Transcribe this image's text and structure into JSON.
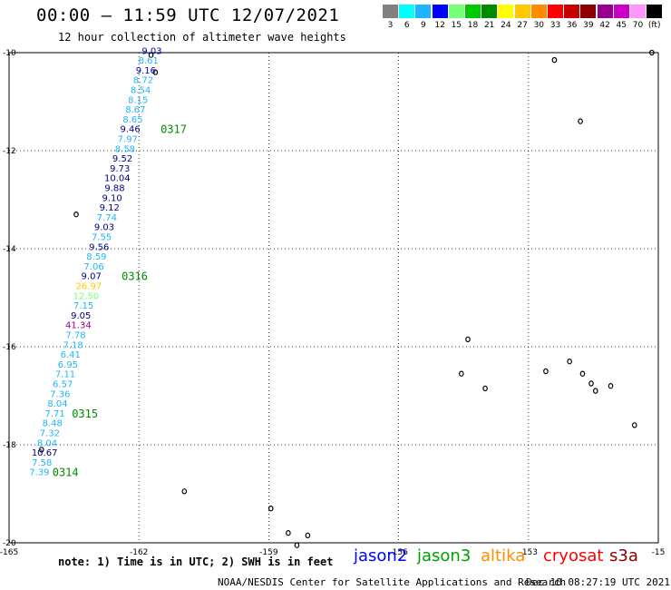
{
  "header": {
    "title": "00:00 — 11:59 UTC 12/07/2021",
    "subtitle": "12 hour collection of altimeter wave heights"
  },
  "color_scale": {
    "labels": [
      "3",
      "6",
      "9",
      "12",
      "15",
      "18",
      "21",
      "24",
      "27",
      "30",
      "33",
      "36",
      "39",
      "42",
      "45",
      "70",
      "(ft)"
    ],
    "colors": [
      "#808080",
      "#00ffff",
      "#1eb4ff",
      "#0000ff",
      "#78ff78",
      "#00c800",
      "#008c00",
      "#ffff00",
      "#ffc800",
      "#ff8c00",
      "#ff0000",
      "#c80000",
      "#8c0000",
      "#96008c",
      "#c800c8",
      "#ff96ff",
      "#000000"
    ]
  },
  "map": {
    "lon_range": [
      -165,
      -150
    ],
    "lat_range": [
      -20,
      -10
    ],
    "lon_labels": [
      {
        "lon": -165,
        "text": "-165"
      },
      {
        "lon": -162,
        "text": "-162"
      },
      {
        "lon": -159,
        "text": "-159"
      },
      {
        "lon": -156,
        "text": "-156"
      },
      {
        "lon": -153,
        "text": "-153"
      },
      {
        "lon": -150,
        "text": "-15"
      }
    ],
    "lat_labels": [
      {
        "lat": -10,
        "text": "-10"
      },
      {
        "lat": -12,
        "text": "-12"
      },
      {
        "lat": -14,
        "text": "-14"
      },
      {
        "lat": -16,
        "text": "-16"
      },
      {
        "lat": -18,
        "text": "-18"
      },
      {
        "lat": -20,
        "text": "-20"
      }
    ]
  },
  "track": {
    "satellite": "jason2",
    "observations": [
      {
        "lon": -161.7,
        "lat": -9.95,
        "value": "9.03",
        "color": "#0000c8"
      },
      {
        "lon": -161.78,
        "lat": -10.15,
        "value": "8.61",
        "color": "#1eb4ff"
      },
      {
        "lon": -161.84,
        "lat": -10.35,
        "value": "9.16",
        "color": "#0000c8"
      },
      {
        "lon": -161.9,
        "lat": -10.55,
        "value": "8.72",
        "color": "#1eb4ff"
      },
      {
        "lon": -161.96,
        "lat": -10.75,
        "value": "8.54",
        "color": "#1eb4ff"
      },
      {
        "lon": -162.02,
        "lat": -10.95,
        "value": "8.15",
        "color": "#1eb4ff"
      },
      {
        "lon": -162.08,
        "lat": -11.15,
        "value": "8.67",
        "color": "#1eb4ff"
      },
      {
        "lon": -162.14,
        "lat": -11.35,
        "value": "8.65",
        "color": "#1eb4ff"
      },
      {
        "lon": -162.2,
        "lat": -11.55,
        "value": "9.46",
        "color": "#000080"
      },
      {
        "lon": -162.26,
        "lat": -11.75,
        "value": "7.97",
        "color": "#1eb4ff"
      },
      {
        "lon": -162.32,
        "lat": -11.95,
        "value": "8.58",
        "color": "#1eb4ff"
      },
      {
        "lon": -162.38,
        "lat": -12.15,
        "value": "9.52",
        "color": "#000080"
      },
      {
        "lon": -162.44,
        "lat": -12.35,
        "value": "9.73",
        "color": "#000080"
      },
      {
        "lon": -162.5,
        "lat": -12.55,
        "value": "10.04",
        "color": "#000080"
      },
      {
        "lon": -162.56,
        "lat": -12.75,
        "value": "9.88",
        "color": "#000080"
      },
      {
        "lon": -162.62,
        "lat": -12.95,
        "value": "9.10",
        "color": "#000080"
      },
      {
        "lon": -162.68,
        "lat": -13.15,
        "value": "9.12",
        "color": "#000080"
      },
      {
        "lon": -162.74,
        "lat": -13.35,
        "value": "7.74",
        "color": "#1eb4ff"
      },
      {
        "lon": -162.8,
        "lat": -13.55,
        "value": "9.03",
        "color": "#000080"
      },
      {
        "lon": -162.86,
        "lat": -13.75,
        "value": "7.55",
        "color": "#1eb4ff"
      },
      {
        "lon": -162.92,
        "lat": -13.95,
        "value": "9.56",
        "color": "#000080"
      },
      {
        "lon": -162.98,
        "lat": -14.15,
        "value": "8.59",
        "color": "#1eb4ff"
      },
      {
        "lon": -163.04,
        "lat": -14.35,
        "value": "7.06",
        "color": "#1eb4ff"
      },
      {
        "lon": -163.1,
        "lat": -14.55,
        "value": "9.07",
        "color": "#000080"
      },
      {
        "lon": -163.16,
        "lat": -14.75,
        "value": "26.97",
        "color": "#ffc800"
      },
      {
        "lon": -163.22,
        "lat": -14.95,
        "value": "12.50",
        "color": "#78ff78"
      },
      {
        "lon": -163.28,
        "lat": -15.15,
        "value": "7.15",
        "color": "#1eb4ff"
      },
      {
        "lon": -163.34,
        "lat": -15.35,
        "value": "9.05",
        "color": "#000080"
      },
      {
        "lon": -163.4,
        "lat": -15.55,
        "value": "41.34",
        "color": "#96008c"
      },
      {
        "lon": -163.46,
        "lat": -15.75,
        "value": "7.78",
        "color": "#1eb4ff"
      },
      {
        "lon": -163.52,
        "lat": -15.95,
        "value": "7.18",
        "color": "#1eb4ff"
      },
      {
        "lon": -163.58,
        "lat": -16.15,
        "value": "6.41",
        "color": "#1eb4ff"
      },
      {
        "lon": -163.64,
        "lat": -16.35,
        "value": "6.95",
        "color": "#1eb4ff"
      },
      {
        "lon": -163.7,
        "lat": -16.55,
        "value": "7.11",
        "color": "#1eb4ff"
      },
      {
        "lon": -163.76,
        "lat": -16.75,
        "value": "6.57",
        "color": "#1eb4ff"
      },
      {
        "lon": -163.82,
        "lat": -16.95,
        "value": "7.36",
        "color": "#1eb4ff"
      },
      {
        "lon": -163.88,
        "lat": -17.15,
        "value": "8.04",
        "color": "#1eb4ff"
      },
      {
        "lon": -163.94,
        "lat": -17.35,
        "value": "7.71",
        "color": "#1eb4ff"
      },
      {
        "lon": -164.0,
        "lat": -17.55,
        "value": "8.48",
        "color": "#1eb4ff"
      },
      {
        "lon": -164.06,
        "lat": -17.75,
        "value": "7.32",
        "color": "#1eb4ff"
      },
      {
        "lon": -164.12,
        "lat": -17.95,
        "value": "8.04",
        "color": "#1eb4ff"
      },
      {
        "lon": -164.18,
        "lat": -18.15,
        "value": "10.67",
        "color": "#000080"
      },
      {
        "lon": -164.24,
        "lat": -18.35,
        "value": "7.58",
        "color": "#1eb4ff"
      },
      {
        "lon": -164.3,
        "lat": -18.55,
        "value": "7.39",
        "color": "#1eb4ff"
      }
    ],
    "time_labels": [
      {
        "lon": -161.5,
        "lat": -11.55,
        "text": "0317"
      },
      {
        "lon": -162.4,
        "lat": -14.55,
        "text": "0316"
      },
      {
        "lon": -163.55,
        "lat": -17.35,
        "text": "0315"
      },
      {
        "lon": -164.0,
        "lat": -18.55,
        "text": "0314"
      }
    ],
    "time_label_color": "#008c00"
  },
  "islands": [
    {
      "lon": -161.72,
      "lat": -10.05
    },
    {
      "lon": -161.62,
      "lat": -10.4
    },
    {
      "lon": -163.45,
      "lat": -13.3
    },
    {
      "lon": -164.25,
      "lat": -18.1
    },
    {
      "lon": -160.95,
      "lat": -18.95
    },
    {
      "lon": -158.95,
      "lat": -19.3
    },
    {
      "lon": -158.55,
      "lat": -19.8
    },
    {
      "lon": -158.35,
      "lat": -20.05
    },
    {
      "lon": -158.1,
      "lat": -19.85
    },
    {
      "lon": -152.4,
      "lat": -10.15
    },
    {
      "lon": -151.8,
      "lat": -11.4
    },
    {
      "lon": -150.15,
      "lat": -10.0
    },
    {
      "lon": -154.4,
      "lat": -15.85
    },
    {
      "lon": -154.55,
      "lat": -16.55
    },
    {
      "lon": -154.0,
      "lat": -16.85
    },
    {
      "lon": -152.6,
      "lat": -16.5
    },
    {
      "lon": -152.05,
      "lat": -16.3
    },
    {
      "lon": -151.75,
      "lat": -16.55
    },
    {
      "lon": -151.55,
      "lat": -16.75
    },
    {
      "lon": -151.45,
      "lat": -16.9
    },
    {
      "lon": -151.1,
      "lat": -16.8
    },
    {
      "lon": -150.55,
      "lat": -17.6
    }
  ],
  "footer": {
    "note": "note: 1) Time is in UTC; 2) SWH is in feet",
    "satellites": [
      {
        "name": "jason2",
        "color": "#0000ff"
      },
      {
        "name": "jason3",
        "color": "#00a000"
      },
      {
        "name": "altika",
        "color": "#ff8c00"
      },
      {
        "name": "cryosat",
        "color": "#ff0000"
      },
      {
        "name": "s3a",
        "color": "#8c0000"
      }
    ],
    "credit": "NOAA/NESDIS Center for Satellite Applications and Research",
    "timestamp": "Dec 10 08:27:19 UTC 2021"
  }
}
